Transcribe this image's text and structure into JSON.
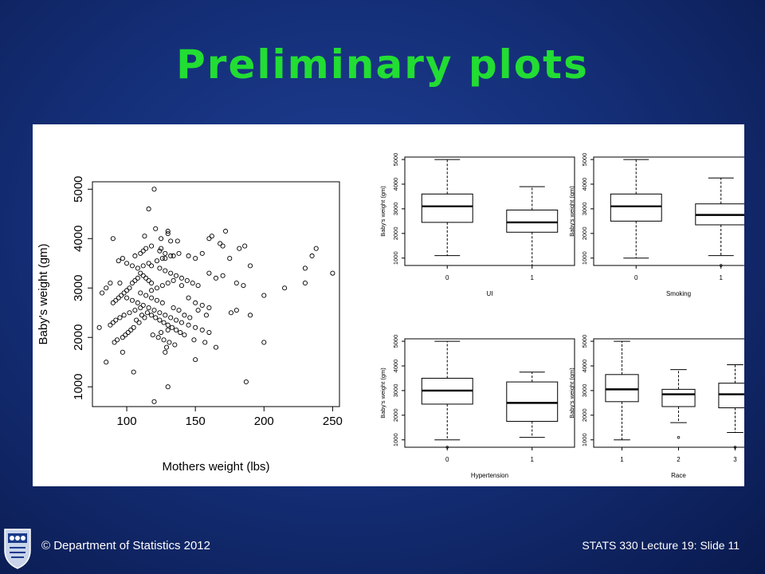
{
  "slide": {
    "title": "Preliminary plots",
    "footer_left": "© Department of Statistics 2012",
    "footer_right": "STATS 330 Lecture 19: Slide 11",
    "colors": {
      "background": "#15307a",
      "title": "#22dd33",
      "footer_text": "#ffffff"
    },
    "logo_icon": "university-crest-icon"
  },
  "chart_data": [
    {
      "type": "scatter",
      "xlabel": "Mothers weight (lbs)",
      "ylabel": "Baby's weight (gm)",
      "xlim": [
        75,
        255
      ],
      "ylim": [
        600,
        5150
      ],
      "xticks": [
        100,
        150,
        200,
        250
      ],
      "yticks": [
        1000,
        2000,
        3000,
        4000,
        5000
      ],
      "marker": "open-circle",
      "points": [
        [
          120,
          5000
        ],
        [
          116,
          4600
        ],
        [
          132,
          3950
        ],
        [
          121,
          4200
        ],
        [
          130,
          4150
        ],
        [
          130,
          4100
        ],
        [
          113,
          4050
        ],
        [
          125,
          4000
        ],
        [
          137,
          3950
        ],
        [
          90,
          4000
        ],
        [
          118,
          3850
        ],
        [
          125,
          3800
        ],
        [
          112,
          3750
        ],
        [
          168,
          3900
        ],
        [
          172,
          4150
        ],
        [
          162,
          4050
        ],
        [
          160,
          4000
        ],
        [
          186,
          3850
        ],
        [
          182,
          3800
        ],
        [
          238,
          3800
        ],
        [
          235,
          3650
        ],
        [
          250,
          3300
        ],
        [
          230,
          3400
        ],
        [
          170,
          3850
        ],
        [
          175,
          3600
        ],
        [
          155,
          3700
        ],
        [
          150,
          3600
        ],
        [
          145,
          3650
        ],
        [
          138,
          3700
        ],
        [
          134,
          3650
        ],
        [
          128,
          3600
        ],
        [
          122,
          3550
        ],
        [
          116,
          3500
        ],
        [
          112,
          3450
        ],
        [
          108,
          3400
        ],
        [
          104,
          3450
        ],
        [
          100,
          3500
        ],
        [
          97,
          3600
        ],
        [
          94,
          3550
        ],
        [
          118,
          3450
        ],
        [
          124,
          3400
        ],
        [
          128,
          3350
        ],
        [
          132,
          3300
        ],
        [
          136,
          3250
        ],
        [
          140,
          3200
        ],
        [
          144,
          3150
        ],
        [
          148,
          3100
        ],
        [
          152,
          3050
        ],
        [
          160,
          3300
        ],
        [
          165,
          3200
        ],
        [
          170,
          3250
        ],
        [
          180,
          3100
        ],
        [
          185,
          3050
        ],
        [
          190,
          3450
        ],
        [
          200,
          2850
        ],
        [
          215,
          3000
        ],
        [
          230,
          3100
        ],
        [
          110,
          3300
        ],
        [
          112,
          3250
        ],
        [
          114,
          3200
        ],
        [
          116,
          3150
        ],
        [
          118,
          3100
        ],
        [
          108,
          3200
        ],
        [
          106,
          3150
        ],
        [
          104,
          3100
        ],
        [
          102,
          3000
        ],
        [
          100,
          2950
        ],
        [
          98,
          2900
        ],
        [
          96,
          2850
        ],
        [
          94,
          2800
        ],
        [
          92,
          2750
        ],
        [
          90,
          2700
        ],
        [
          95,
          3100
        ],
        [
          88,
          3100
        ],
        [
          85,
          3000
        ],
        [
          82,
          2900
        ],
        [
          100,
          2800
        ],
        [
          104,
          2750
        ],
        [
          108,
          2700
        ],
        [
          112,
          2650
        ],
        [
          116,
          2600
        ],
        [
          120,
          2550
        ],
        [
          124,
          2500
        ],
        [
          128,
          2450
        ],
        [
          132,
          2400
        ],
        [
          136,
          2350
        ],
        [
          140,
          2300
        ],
        [
          145,
          2250
        ],
        [
          150,
          2200
        ],
        [
          155,
          2150
        ],
        [
          160,
          2100
        ],
        [
          110,
          2600
        ],
        [
          106,
          2550
        ],
        [
          102,
          2500
        ],
        [
          98,
          2450
        ],
        [
          95,
          2400
        ],
        [
          92,
          2350
        ],
        [
          90,
          2300
        ],
        [
          88,
          2250
        ],
        [
          115,
          2500
        ],
        [
          118,
          2450
        ],
        [
          121,
          2400
        ],
        [
          124,
          2350
        ],
        [
          127,
          2300
        ],
        [
          130,
          2250
        ],
        [
          133,
          2200
        ],
        [
          136,
          2150
        ],
        [
          139,
          2100
        ],
        [
          142,
          2050
        ],
        [
          111,
          2450
        ],
        [
          113,
          2400
        ],
        [
          107,
          2350
        ],
        [
          109,
          2300
        ],
        [
          105,
          2200
        ],
        [
          103,
          2150
        ],
        [
          101,
          2100
        ],
        [
          99,
          2050
        ],
        [
          97,
          2000
        ],
        [
          93,
          1950
        ],
        [
          91,
          1900
        ],
        [
          130,
          2150
        ],
        [
          125,
          2100
        ],
        [
          119,
          2050
        ],
        [
          123,
          2000
        ],
        [
          127,
          1950
        ],
        [
          131,
          1900
        ],
        [
          135,
          1850
        ],
        [
          129,
          1800
        ],
        [
          128,
          1700
        ],
        [
          149,
          1950
        ],
        [
          157,
          1900
        ],
        [
          165,
          1800
        ],
        [
          176,
          2500
        ],
        [
          180,
          2550
        ],
        [
          190,
          2450
        ],
        [
          200,
          1900
        ],
        [
          187,
          1100
        ],
        [
          150,
          1550
        ],
        [
          130,
          1000
        ],
        [
          120,
          700
        ],
        [
          105,
          1300
        ],
        [
          97,
          1700
        ],
        [
          85,
          1500
        ],
        [
          80,
          2200
        ],
        [
          110,
          2900
        ],
        [
          114,
          2850
        ],
        [
          118,
          2800
        ],
        [
          122,
          2750
        ],
        [
          126,
          2700
        ],
        [
          152,
          2550
        ],
        [
          158,
          2450
        ],
        [
          142,
          2450
        ],
        [
          146,
          2400
        ],
        [
          138,
          2550
        ],
        [
          134,
          2600
        ],
        [
          118,
          2950
        ],
        [
          122,
          3000
        ],
        [
          126,
          3050
        ],
        [
          130,
          3100
        ],
        [
          134,
          3150
        ],
        [
          106,
          3650
        ],
        [
          110,
          3700
        ],
        [
          114,
          3800
        ],
        [
          124,
          3750
        ],
        [
          128,
          3700
        ],
        [
          132,
          3650
        ],
        [
          126,
          3600
        ],
        [
          140,
          3050
        ],
        [
          145,
          2800
        ],
        [
          150,
          2700
        ],
        [
          155,
          2650
        ],
        [
          160,
          2600
        ]
      ]
    },
    {
      "type": "boxplot",
      "xlabel": "UI",
      "ylabel": "Baby's weight (gm)",
      "ylim": [
        700,
        5100
      ],
      "yticks": [
        1000,
        2000,
        3000,
        4000,
        5000
      ],
      "categories": [
        "0",
        "1"
      ],
      "boxes": [
        {
          "whisker_low": 1100,
          "q1": 2450,
          "median": 3100,
          "q3": 3600,
          "whisker_high": 5000,
          "outliers": []
        },
        {
          "whisker_low": 700,
          "q1": 2050,
          "median": 2450,
          "q3": 2950,
          "whisker_high": 3900,
          "outliers": []
        }
      ]
    },
    {
      "type": "boxplot",
      "xlabel": "Smoking",
      "ylabel": "Baby's weight (gm)",
      "ylim": [
        700,
        5100
      ],
      "yticks": [
        1000,
        2000,
        3000,
        4000,
        5000
      ],
      "categories": [
        "0",
        "1"
      ],
      "boxes": [
        {
          "whisker_low": 1000,
          "q1": 2500,
          "median": 3100,
          "q3": 3600,
          "whisker_high": 5000,
          "outliers": []
        },
        {
          "whisker_low": 1100,
          "q1": 2350,
          "median": 2750,
          "q3": 3200,
          "whisker_high": 4250,
          "outliers": [
            700
          ]
        }
      ]
    },
    {
      "type": "boxplot",
      "xlabel": "Hypertension",
      "ylabel": "Baby's weight (gm)",
      "ylim": [
        700,
        5100
      ],
      "yticks": [
        1000,
        2000,
        3000,
        4000,
        5000
      ],
      "categories": [
        "0",
        "1"
      ],
      "boxes": [
        {
          "whisker_low": 1000,
          "q1": 2450,
          "median": 3000,
          "q3": 3500,
          "whisker_high": 5000,
          "outliers": [
            700
          ]
        },
        {
          "whisker_low": 1100,
          "q1": 1750,
          "median": 2500,
          "q3": 3350,
          "whisker_high": 3750,
          "outliers": []
        }
      ]
    },
    {
      "type": "boxplot",
      "xlabel": "Race",
      "ylabel": "Baby's weight (gm)",
      "ylim": [
        700,
        5100
      ],
      "yticks": [
        1000,
        2000,
        3000,
        4000,
        5000
      ],
      "categories": [
        "1",
        "2",
        "3"
      ],
      "boxes": [
        {
          "whisker_low": 1000,
          "q1": 2550,
          "median": 3050,
          "q3": 3650,
          "whisker_high": 5000,
          "outliers": []
        },
        {
          "whisker_low": 1700,
          "q1": 2350,
          "median": 2850,
          "q3": 3050,
          "whisker_high": 3850,
          "outliers": [
            1100
          ]
        },
        {
          "whisker_low": 1300,
          "q1": 2300,
          "median": 2850,
          "q3": 3300,
          "whisker_high": 4050,
          "outliers": [
            700
          ]
        }
      ]
    }
  ]
}
